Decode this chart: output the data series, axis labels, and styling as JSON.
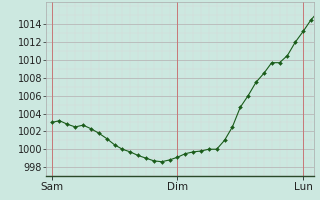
{
  "background_color": "#cce8e0",
  "line_color": "#1a5c1a",
  "marker_color": "#1a5c1a",
  "grid_color_major": "#b8b8b8",
  "grid_color_minor": "#d8d8d8",
  "vline_color": "#c87878",
  "ylim": [
    997.0,
    1016.5
  ],
  "yticks": [
    998,
    1000,
    1002,
    1004,
    1006,
    1008,
    1010,
    1012,
    1014
  ],
  "day_labels": [
    "Sam",
    "Dim",
    "Lun"
  ],
  "day_positions": [
    0,
    144,
    288
  ],
  "xlim": [
    -6,
    300
  ],
  "x_values": [
    0,
    9,
    18,
    27,
    36,
    45,
    54,
    63,
    72,
    81,
    90,
    99,
    108,
    117,
    126,
    135,
    144,
    153,
    162,
    171,
    180,
    189,
    198,
    207,
    216,
    225,
    234,
    243,
    252,
    261,
    270,
    279,
    288,
    297,
    306
  ],
  "y_values": [
    1003.0,
    1003.2,
    1002.8,
    1002.5,
    1002.7,
    1002.3,
    1001.8,
    1001.2,
    1000.5,
    1000.0,
    999.7,
    999.3,
    999.0,
    998.7,
    998.6,
    998.8,
    999.1,
    999.5,
    999.7,
    999.8,
    1000.0,
    1000.0,
    1001.0,
    1002.5,
    1004.7,
    1006.0,
    1007.5,
    1008.5,
    1009.7,
    1009.7,
    1010.5,
    1012.0,
    1013.2,
    1014.5,
    1015.5
  ],
  "tick_fontsize": 7,
  "label_fontsize": 7.5
}
